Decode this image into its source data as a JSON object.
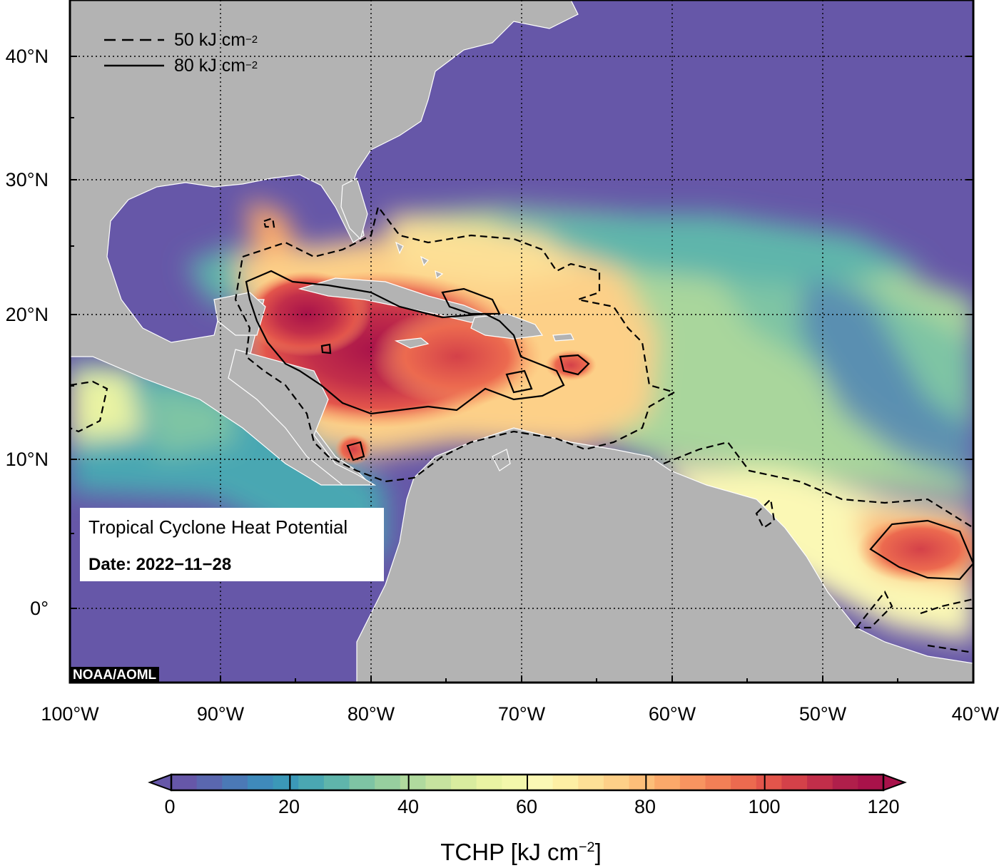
{
  "map": {
    "lat_labels": [
      "40°N",
      "30°N",
      "20°N",
      "10°N",
      "0°"
    ],
    "lon_labels": [
      "100°W",
      "90°W",
      "80°W",
      "70°W",
      "60°W",
      "50°W",
      "40°W"
    ],
    "extent": {
      "lon": [
        -100,
        -40
      ],
      "lat": [
        -5,
        44
      ]
    },
    "colors": {
      "ocean_low": "#6657a8",
      "land": "#b3b3b3",
      "high": "#a8124a"
    },
    "contours": [
      {
        "style": "dashed",
        "value_label": "50 kJ cm",
        "exp": "−2"
      },
      {
        "style": "solid",
        "value_label": "80 kJ cm",
        "exp": "−2"
      }
    ]
  },
  "info": {
    "title": "Tropical Cyclone Heat Potential",
    "date": "Date: 2022−11−28"
  },
  "credit": "NOAA/AOML",
  "colorbar": {
    "ticks": [
      "0",
      "20",
      "40",
      "60",
      "80",
      "100",
      "120"
    ],
    "label": "TCHP [kJ cm",
    "label_exp": "−2",
    "label_suffix": "]",
    "colors": [
      "#6657a8",
      "#5a67af",
      "#4b79b6",
      "#3f8abb",
      "#3b98b8",
      "#4aa7b2",
      "#5fb5ab",
      "#7ec4a4",
      "#97cf9f",
      "#b0da9e",
      "#c6e39f",
      "#d9ec9f",
      "#e9f3a3",
      "#f3f7ab",
      "#fbf8b5",
      "#fdefa4",
      "#fde096",
      "#fdd088",
      "#fcbe79",
      "#fba96a",
      "#f89460",
      "#f27f56",
      "#ec6a4f",
      "#e3554b",
      "#d44149",
      "#c22e4a",
      "#b01f4b",
      "#a8124a"
    ]
  }
}
